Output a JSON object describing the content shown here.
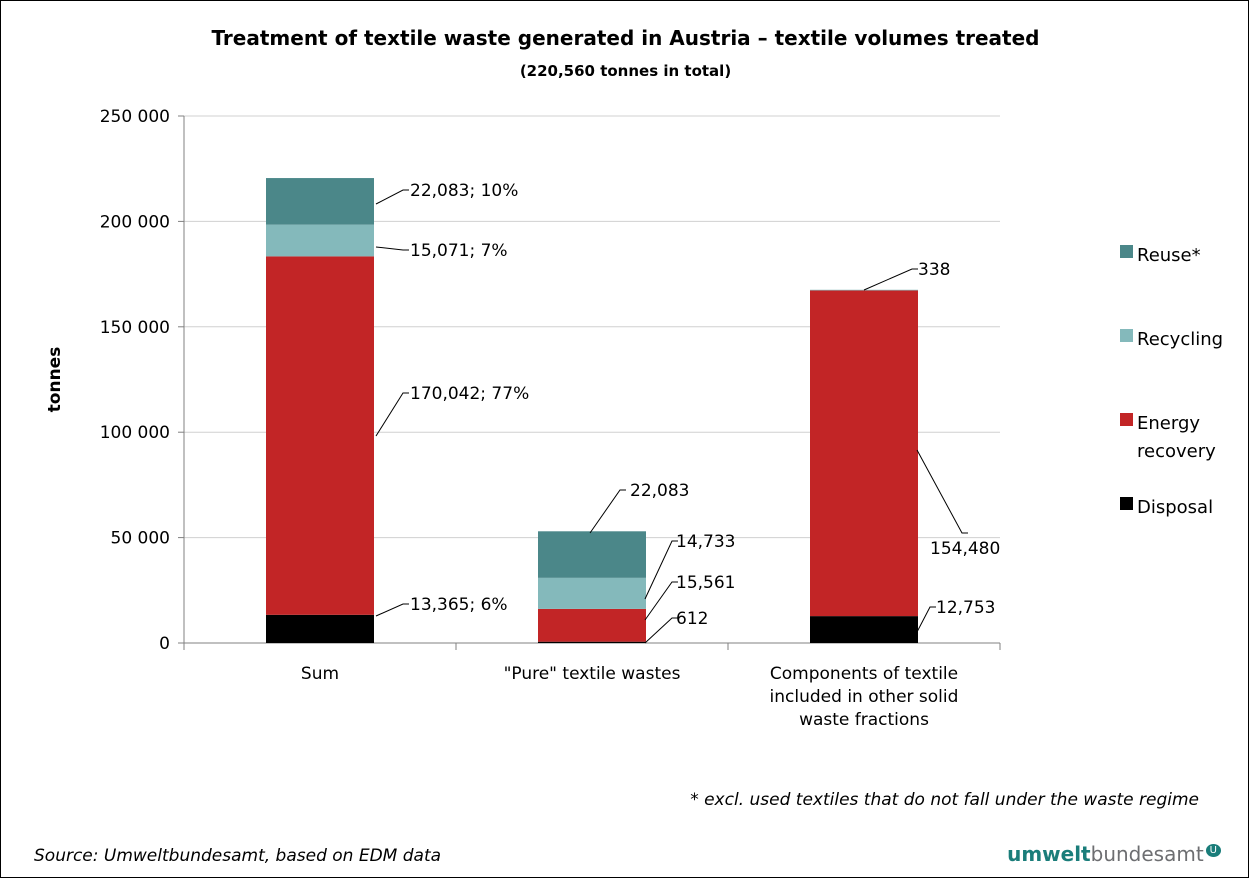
{
  "chart_data": {
    "type": "bar",
    "stacked": true,
    "title": "Treatment of textile waste generated in Austria – textile volumes treated",
    "subtitle": "(220,560 tonnes in total)",
    "ylabel": "tonnes",
    "ylim": [
      0,
      250000
    ],
    "yticks": [
      0,
      50000,
      100000,
      150000,
      200000,
      250000
    ],
    "ytick_labels": [
      "0",
      "50 000",
      "100 000",
      "150 000",
      "200 000",
      "250 000"
    ],
    "grid": true,
    "legend_position": "right",
    "categories": [
      [
        "Sum"
      ],
      [
        "\"Pure\" textile wastes"
      ],
      [
        "Components of textile",
        "included in other solid",
        "waste fractions"
      ]
    ],
    "series": [
      {
        "name": "Disposal",
        "color": "#000000",
        "values": [
          13365,
          612,
          12753
        ],
        "labels": [
          "13,365; 6%",
          "612",
          "12,753"
        ]
      },
      {
        "name": "Energy recovery",
        "color": "#c22526",
        "values": [
          170042,
          15561,
          154480
        ],
        "labels": [
          "170,042; 77%",
          "15,561",
          "154,480"
        ]
      },
      {
        "name": "Recycling",
        "color": "#84b9bb",
        "values": [
          15071,
          14733,
          338
        ],
        "labels": [
          "15,071; 7%",
          "14,733",
          "338"
        ]
      },
      {
        "name": "Reuse*",
        "color": "#4b8789",
        "values": [
          22083,
          22083,
          0
        ],
        "labels": [
          "22,083; 10%",
          "22,083",
          ""
        ]
      }
    ],
    "legend": [
      {
        "label": "Reuse*",
        "color": "#4b8789"
      },
      {
        "label": "Recycling",
        "color": "#84b9bb"
      },
      {
        "label": "Energy",
        "label2": "recovery",
        "color": "#c22526"
      },
      {
        "label": "Disposal",
        "color": "#000000"
      }
    ]
  },
  "footnote": "* excl. used textiles that do not fall under the waste regime",
  "source": "Source: Umweltbundesamt, based on EDM data",
  "logo": {
    "bold": "umwelt",
    "regular": "bundesamt",
    "mark": "U"
  }
}
